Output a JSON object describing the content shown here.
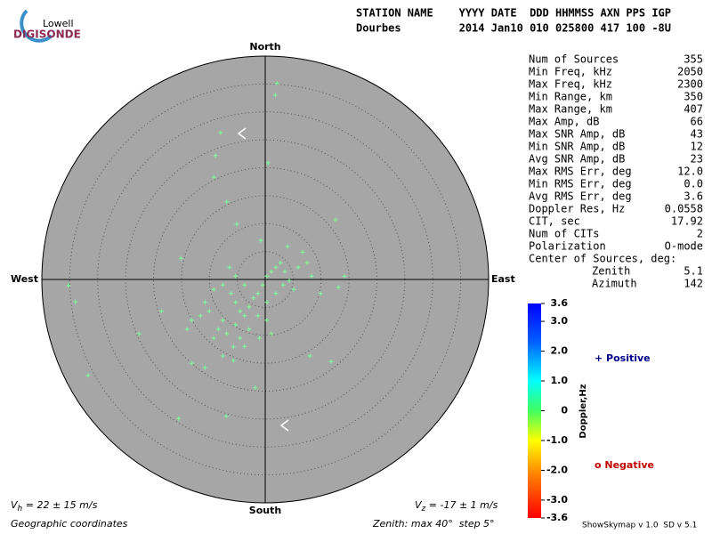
{
  "logo": {
    "top": "Lowell",
    "bottom": "DIGISONDE"
  },
  "header": {
    "columns": "STATION NAME    YYYY DATE  DDD HHMMSS AXN PPS IGP",
    "values": "Dourbes         2014 Jan10 010 025800 417 100 -8U"
  },
  "stats": [
    [
      "Num of Sources",
      "355"
    ],
    [
      "Min Freq, kHz",
      "2050"
    ],
    [
      "Max Freq, kHz",
      "2300"
    ],
    [
      "Min Range, km",
      "350"
    ],
    [
      "Max Range, km",
      "407"
    ],
    [
      "Max Amp, dB",
      "66"
    ],
    [
      "Max SNR Amp, dB",
      "43"
    ],
    [
      "Min SNR Amp, dB",
      "12"
    ],
    [
      "Avg SNR Amp, dB",
      "23"
    ],
    [
      "Max RMS Err, deg",
      "12.0"
    ],
    [
      "Min RMS Err, deg",
      "0.0"
    ],
    [
      "Avg RMS Err, deg",
      "3.6"
    ],
    [
      "Doppler Res, Hz",
      "0.0558"
    ],
    [
      "CIT, sec",
      "17.92"
    ],
    [
      "Num of CITs",
      "2"
    ],
    [
      "Polarization",
      "O-mode"
    ]
  ],
  "center": {
    "title": "Center of Sources, deg:",
    "rows": [
      [
        "Zenith",
        "5.1"
      ],
      [
        "Azimuth",
        "142"
      ]
    ]
  },
  "colorbar": {
    "label": "Doppler,Hz",
    "lim": [
      -3.6,
      3.6
    ],
    "ticks": [
      {
        "value": 3.6,
        "label": "3.6"
      },
      {
        "value": 3,
        "label": "3.0"
      },
      {
        "value": 2,
        "label": "2.0"
      },
      {
        "value": 1,
        "label": "1.0"
      },
      0,
      {
        "value": -1,
        "label": "-1.0"
      },
      {
        "value": -2,
        "label": "-2.0"
      },
      {
        "value": -3,
        "label": "-3.0"
      },
      {
        "value": -3.6,
        "label": "-3.6"
      }
    ]
  },
  "legend": {
    "positive": "+ Positive",
    "negative": "o Negative"
  },
  "footer": {
    "vh_v": "V",
    "vh_sub": "h",
    "vh_rest": " = 22 ± 15 m/s",
    "vz_v": "V",
    "vz_sub": "z",
    "vz_rest": " = -17 ± 1 m/s",
    "coords": "Geographic coordinates",
    "zenith": "Zenith: max 40°  step 5°",
    "version": "ShowSkymap v 1.0  SD v 5.1"
  },
  "chart_data": {
    "type": "skymap",
    "directions": {
      "north": "North",
      "south": "South",
      "east": "East",
      "west": "West"
    },
    "xlim": [
      -40,
      40
    ],
    "ylim": [
      -40,
      40
    ],
    "rticks": [
      5,
      10,
      15,
      20,
      25,
      30,
      35,
      40
    ],
    "color": "#7dff9c",
    "x": [
      2.1,
      1.8,
      -8.0,
      -8.9,
      0.5,
      -9.2,
      -6.9,
      12.6,
      -5.1,
      -0.8,
      4.0,
      -15.1,
      6.7,
      -35.2,
      -34.0,
      -31.7,
      -15.5,
      -7.0,
      -1.8,
      8.0,
      11.8,
      13.1,
      14.2,
      -22.6,
      -18.6,
      -13.2,
      -10.8,
      -7.6,
      -5.7,
      -3.7,
      -6.1,
      -5.3,
      -4.5,
      -3.7,
      -2.9,
      -2.1,
      -1.3,
      -0.5,
      0.3,
      1.1,
      1.9,
      2.7,
      3.5,
      4.3,
      5.1,
      -7.6,
      -8.4,
      -9.2,
      -6.9,
      -5.3,
      -10.0,
      -11.6,
      -13.2,
      -14.0,
      -10.8,
      -9.2,
      -7.6,
      -6.4,
      -5.3,
      -3.7,
      -1.3,
      0.3,
      1.9,
      3.2,
      5.9,
      7.5,
      8.3,
      9.9,
      0.3,
      1.1,
      -1.0,
      -2.9,
      -4.5,
      -5.7
    ],
    "values": [
      35.1,
      33.0,
      26.3,
      22.2,
      20.9,
      18.3,
      13.9,
      10.7,
      9.9,
      7.0,
      5.9,
      3.8,
      4.9,
      -1.1,
      -4.0,
      -17.2,
      -24.9,
      -24.5,
      -19.4,
      -13.7,
      -14.7,
      -1.4,
      0.6,
      -9.7,
      -5.7,
      -15.0,
      -15.8,
      -13.7,
      -14.5,
      -12.0,
      -2.5,
      -4.1,
      -5.7,
      -6.5,
      -4.9,
      -3.3,
      -2.5,
      -1.0,
      0.6,
      1.4,
      2.2,
      3.0,
      1.4,
      -0.2,
      -1.8,
      -7.3,
      -8.9,
      -10.5,
      -9.7,
      -8.1,
      -5.7,
      -6.5,
      -7.3,
      -8.9,
      -4.1,
      -1.8,
      -1.0,
      2.2,
      0.6,
      -1.0,
      -6.5,
      -4.1,
      -2.5,
      -1.0,
      2.2,
      3.0,
      0.6,
      -2.5,
      -7.3,
      -9.7,
      -10.5,
      -8.9,
      -10.5,
      -12.1
    ]
  }
}
